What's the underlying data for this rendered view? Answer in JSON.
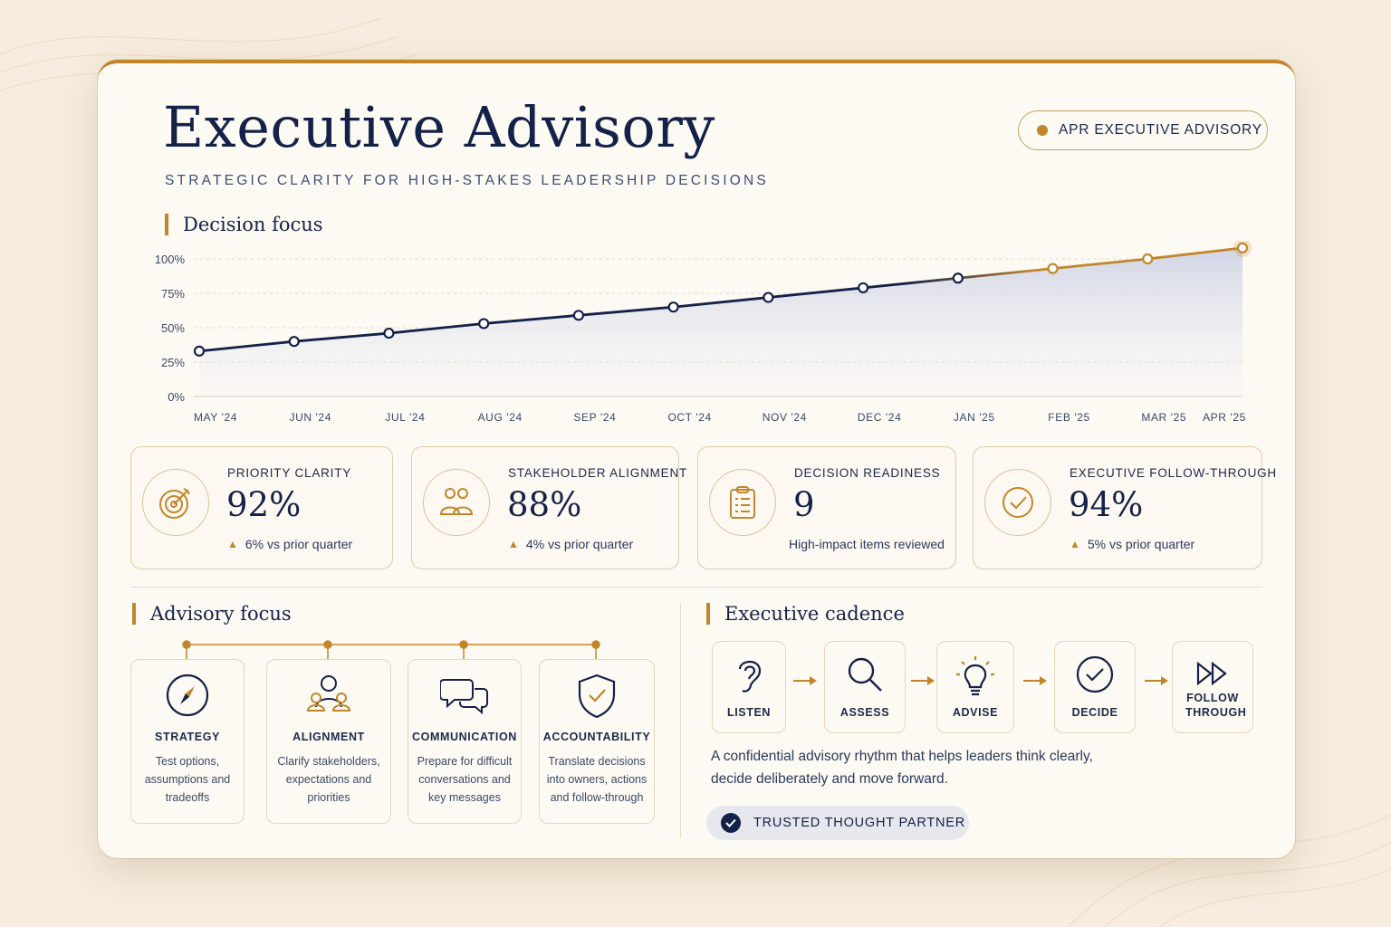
{
  "header": {
    "title": "Executive Advisory",
    "subtitle": "STRATEGIC CLARITY FOR HIGH-STAKES LEADERSHIP DECISIONS",
    "badge": "APR EXECUTIVE ADVISORY"
  },
  "colors": {
    "navy": "#14224a",
    "gold": "#c2862a",
    "background": "#f7ecdd",
    "card": "#fdf9f3"
  },
  "chart_section": {
    "heading": "Decision focus"
  },
  "chart_data": {
    "type": "line",
    "title": "",
    "xlabel": "",
    "ylabel": "",
    "x": [
      "MAY '24",
      "JUN '24",
      "JUL '24",
      "AUG '24",
      "SEP '24",
      "OCT '24",
      "NOV '24",
      "DEC '24",
      "JAN '25",
      "FEB '25",
      "MAR '25",
      "APR '25"
    ],
    "yticks": [
      "0%",
      "25%",
      "50%",
      "75%",
      "100%"
    ],
    "ylim": [
      0,
      100
    ],
    "series": [
      {
        "values": [
          33,
          40,
          46,
          53,
          59,
          65,
          72,
          79,
          86,
          93,
          100,
          108
        ]
      }
    ],
    "grid": true,
    "area_fill": true
  },
  "kpis": [
    {
      "label": "PRIORITY CLARITY",
      "value": "92%",
      "delta": "6% vs prior quarter",
      "icon": "target-icon"
    },
    {
      "label": "STAKEHOLDER ALIGNMENT",
      "value": "88%",
      "delta": "4% vs prior quarter",
      "icon": "people-icon"
    },
    {
      "label": "DECISION READINESS",
      "value": "9",
      "note": "High-impact items reviewed",
      "icon": "clipboard-icon"
    },
    {
      "label": "EXECUTIVE FOLLOW-THROUGH",
      "value": "94%",
      "delta": "5% vs prior quarter",
      "icon": "check-circle-icon"
    }
  ],
  "advisory_focus": {
    "heading": "Advisory focus",
    "items": [
      {
        "title": "STRATEGY",
        "desc": "Test options, assumptions and tradeoffs",
        "icon": "compass-icon"
      },
      {
        "title": "ALIGNMENT",
        "desc": "Clarify stakeholders, expectations and priorities",
        "icon": "group-icon"
      },
      {
        "title": "COMMUNICATION",
        "desc": "Prepare for difficult conversations and key messages",
        "icon": "chat-bubbles-icon"
      },
      {
        "title": "ACCOUNTABILITY",
        "desc": "Translate decisions into owners, actions and follow-through",
        "icon": "shield-check-icon"
      }
    ]
  },
  "cadence": {
    "heading": "Executive cadence",
    "steps": [
      {
        "label": "LISTEN",
        "icon": "ear-icon"
      },
      {
        "label": "ASSESS",
        "icon": "magnifier-icon"
      },
      {
        "label": "ADVISE",
        "icon": "lightbulb-icon"
      },
      {
        "label": "DECIDE",
        "icon": "check-circle-icon"
      },
      {
        "label": "FOLLOW THROUGH",
        "icon": "fast-forward-icon"
      }
    ],
    "description": "A confidential advisory rhythm that helps leaders think clearly, decide deliberately and move forward.",
    "pill": "TRUSTED THOUGHT PARTNER"
  }
}
